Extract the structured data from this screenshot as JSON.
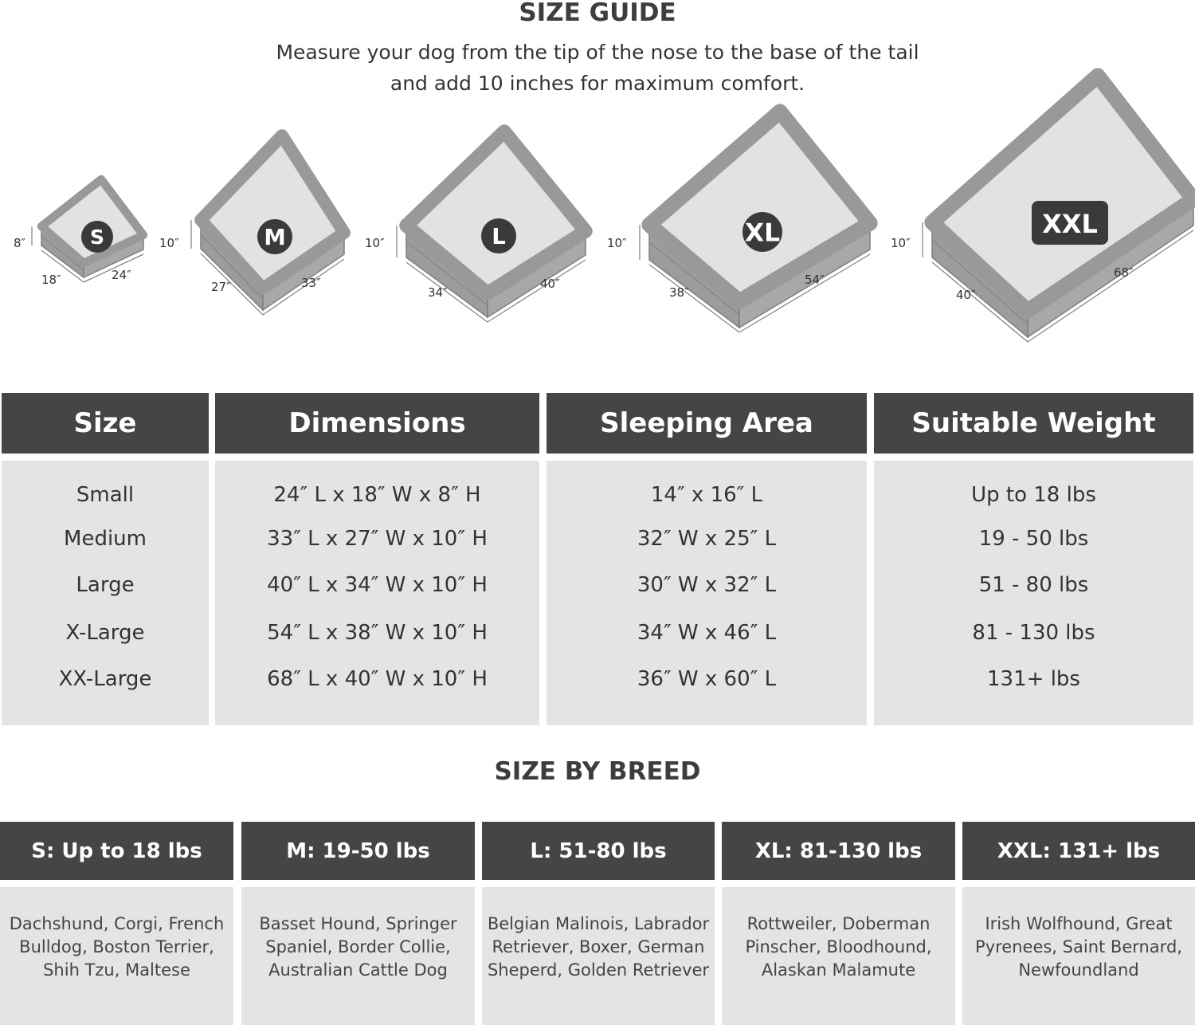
{
  "title": "SIZE GUIDE",
  "subtitle": [
    "Measure your dog from the tip of the nose to the base of the tail",
    "and add 10 inches for maximum comfort."
  ],
  "beds": [
    {
      "badge": "S",
      "height": "8″",
      "width": "18″",
      "length": "24″"
    },
    {
      "badge": "M",
      "height": "10″",
      "width": "27″",
      "length": "33″"
    },
    {
      "badge": "L",
      "height": "10″",
      "width": "34″",
      "length": "40″"
    },
    {
      "badge": "XL",
      "height": "10″",
      "width": "38″",
      "length": "54″"
    },
    {
      "badge": "XXL",
      "height": "10″",
      "width": "40″",
      "length": "68″"
    }
  ],
  "size_table": {
    "headers": [
      "Size",
      "Dimensions",
      "Sleeping Area",
      "Suitable Weight"
    ],
    "rows": [
      [
        "Small",
        "24″ L x 18″ W x 8″ H",
        "14″ x 16″ L",
        "Up to 18 lbs"
      ],
      [
        "Medium",
        "33″ L x 27″ W x 10″ H",
        "32″ W x 25″ L",
        "19 - 50 lbs"
      ],
      [
        "Large",
        "40″ L x 34″ W x 10″ H",
        "30″ W x 32″ L",
        "51 - 80 lbs"
      ],
      [
        "X-Large",
        "54″ L x 38″ W x 10″ H",
        "34″ W x 46″ L",
        "81 - 130 lbs"
      ],
      [
        "XX-Large",
        "68″ L x 40″ W x 10″ H",
        "36″ W x 60″ L",
        "131+ lbs"
      ]
    ]
  },
  "breed_title": "SIZE BY BREED",
  "breed_table": [
    {
      "header": "S: Up to 18 lbs",
      "breeds": "Dachshund, Corgi, French Bulldog, Boston Terrier, Shih Tzu, Maltese"
    },
    {
      "header": "M: 19-50 lbs",
      "breeds": "Basset Hound, Springer Spaniel, Border Collie, Australian Cattle Dog"
    },
    {
      "header": "L: 51-80 lbs",
      "breeds": "Belgian Malinois, Labrador Retriever, Boxer, German Sheperd, Golden Retriever"
    },
    {
      "header": "XL: 81-130 lbs",
      "breeds": "Rottweiler, Doberman Pinscher, Bloodhound, Alaskan Malamute"
    },
    {
      "header": "XXL: 131+ lbs",
      "breeds": "Irish Wolfhound, Great Pyrenees, Saint Bernard, Newfoundland"
    }
  ],
  "colors": {
    "header_bg": "#444643",
    "cell_bg": "#e4e4e4",
    "bed_frame": "#999999",
    "bed_top": "#e2e2e2"
  }
}
